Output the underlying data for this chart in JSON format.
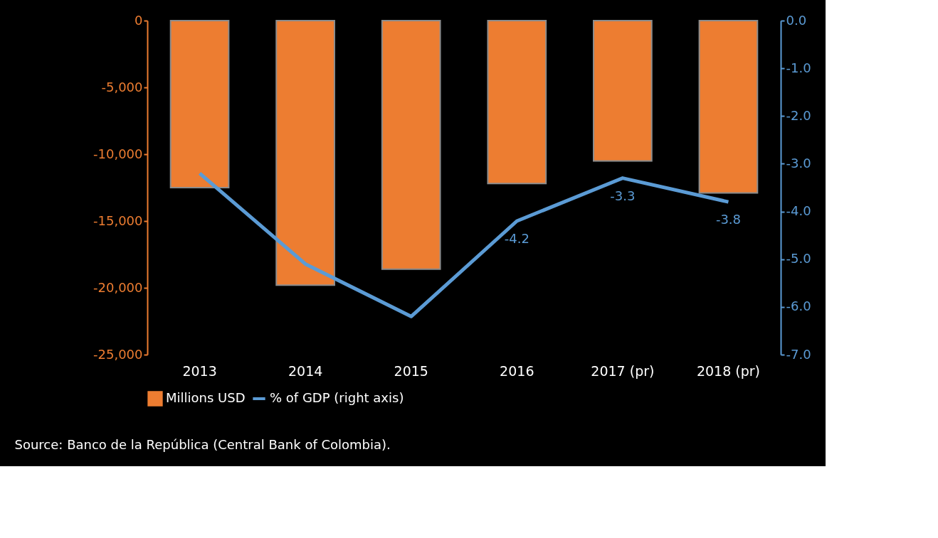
{
  "chart_data": {
    "type": "bar",
    "categories": [
      "2013",
      "2014",
      "2015",
      "2016",
      "2017 (pr)",
      "2018 (pr)"
    ],
    "series": [
      {
        "name": "Millions USD",
        "color": "#ed7d31",
        "values": [
          -12500,
          -19800,
          -18600,
          -12200,
          -10500,
          -12900
        ]
      },
      {
        "name": "% of GDP (right axis)",
        "type": "line",
        "axis": "y2",
        "color": "#5b9bd5",
        "values": [
          -3.2,
          -5.1,
          -6.2,
          -4.2,
          -3.3,
          -3.8
        ],
        "value_labels": [
          null,
          null,
          null,
          "-4.2",
          "-3.3",
          "-3.8"
        ]
      }
    ],
    "ylim": [
      -25000,
      0
    ],
    "yticks": [
      {
        "value": -25000,
        "label": "-25,000"
      },
      {
        "value": -20000,
        "label": "-20,000"
      },
      {
        "value": -15000,
        "label": "-15,000"
      },
      {
        "value": -10000,
        "label": "-10,000"
      },
      {
        "value": -5000,
        "label": "-5,000"
      },
      0
    ],
    "y2lim": [
      -7,
      0
    ],
    "y2ticks": [
      {
        "value": -7,
        "label": "-7.0"
      },
      {
        "value": -6,
        "label": "-6.0"
      },
      {
        "value": -5,
        "label": "-5.0"
      },
      {
        "value": -4,
        "label": "-4.0"
      },
      {
        "value": -3,
        "label": "-3.0"
      },
      {
        "value": -2,
        "label": "-2.0"
      },
      {
        "value": -1,
        "label": "-1.0"
      },
      {
        "value": 0,
        "label": "0.0"
      }
    ],
    "legend": "bottom",
    "grid": false,
    "annotations": [
      "Source: Banco de la República (Central Bank of Colombia)."
    ]
  }
}
